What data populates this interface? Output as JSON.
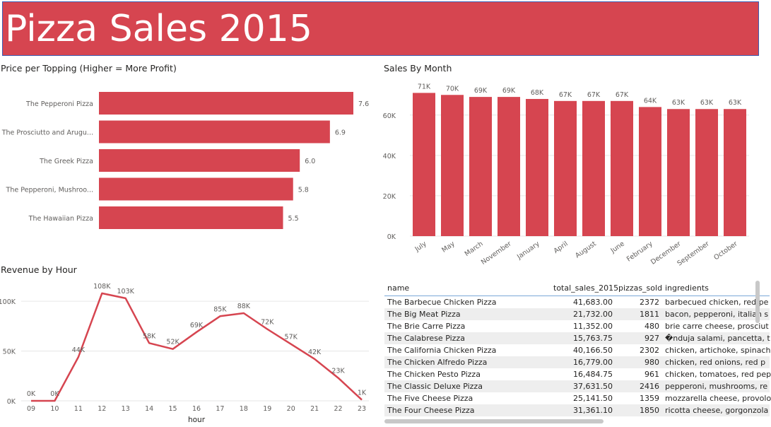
{
  "header": {
    "title": "Pizza Sales 2015",
    "color": "#d64550"
  },
  "colors": {
    "bar": "#d64550",
    "line": "#d64550",
    "grid": "#e6e6e6",
    "text": "#605e5c"
  },
  "charts": [
    {
      "id": "price_per_topping",
      "type": "bar",
      "orientation": "horizontal",
      "title": "Price per Topping (Higher = More Profit)",
      "categories": [
        "The Pepperoni Pizza",
        "The Prosciutto and Arugu...",
        "The Greek Pizza",
        "The Pepperoni, Mushroo...",
        "The Hawaiian Pizza"
      ],
      "values": [
        7.6,
        6.9,
        6.0,
        5.8,
        5.5
      ],
      "value_labels": [
        "7.6",
        "6.9",
        "6.0",
        "5.8",
        "5.5"
      ],
      "xlim": [
        0,
        7.6
      ]
    },
    {
      "id": "sales_by_month",
      "type": "bar",
      "orientation": "vertical",
      "title": "Sales By Month",
      "categories": [
        "July",
        "May",
        "March",
        "November",
        "January",
        "April",
        "August",
        "June",
        "February",
        "December",
        "September",
        "October"
      ],
      "values": [
        71000,
        70000,
        69000,
        69000,
        68000,
        67000,
        67000,
        67000,
        64000,
        63000,
        63000,
        63000
      ],
      "value_labels": [
        "71K",
        "70K",
        "69K",
        "69K",
        "68K",
        "67K",
        "67K",
        "67K",
        "64K",
        "63K",
        "63K",
        "63K"
      ],
      "ylim": [
        0,
        75000
      ],
      "yticks": [
        0,
        20000,
        40000,
        60000
      ],
      "ytick_labels": [
        "0K",
        "20K",
        "40K",
        "60K"
      ]
    },
    {
      "id": "revenue_by_hour",
      "type": "line",
      "title": "Revenue by Hour",
      "xlabel": "hour",
      "x": [
        "09",
        "10",
        "11",
        "12",
        "13",
        "14",
        "15",
        "16",
        "17",
        "18",
        "19",
        "20",
        "21",
        "22",
        "23"
      ],
      "values": [
        0,
        0,
        44000,
        108000,
        103000,
        58000,
        52000,
        69000,
        85000,
        88000,
        72000,
        57000,
        42000,
        23000,
        1000
      ],
      "value_labels": [
        "0K",
        "0K",
        "44K",
        "108K",
        "103K",
        "58K",
        "52K",
        "69K",
        "85K",
        "88K",
        "72K",
        "57K",
        "42K",
        "23K",
        "1K"
      ],
      "ylim": [
        0,
        115000
      ],
      "yticks": [
        0,
        50000,
        100000
      ],
      "ytick_labels": [
        "0K",
        "50K",
        "100K"
      ]
    }
  ],
  "chart_data": [
    {
      "type": "bar",
      "title": "Price per Topping (Higher = More Profit)",
      "categories": [
        "The Pepperoni Pizza",
        "The Prosciutto and Arugu...",
        "The Greek Pizza",
        "The Pepperoni, Mushroo...",
        "The Hawaiian Pizza"
      ],
      "values": [
        7.6,
        6.9,
        6.0,
        5.8,
        5.5
      ]
    },
    {
      "type": "bar",
      "title": "Sales By Month",
      "categories": [
        "July",
        "May",
        "March",
        "November",
        "January",
        "April",
        "August",
        "June",
        "February",
        "December",
        "September",
        "October"
      ],
      "values": [
        71000,
        70000,
        69000,
        69000,
        68000,
        67000,
        67000,
        67000,
        64000,
        63000,
        63000,
        63000
      ],
      "ylim": [
        0,
        75000
      ]
    },
    {
      "type": "line",
      "title": "Revenue by Hour",
      "xlabel": "hour",
      "x": [
        "09",
        "10",
        "11",
        "12",
        "13",
        "14",
        "15",
        "16",
        "17",
        "18",
        "19",
        "20",
        "21",
        "22",
        "23"
      ],
      "values": [
        0,
        0,
        44000,
        108000,
        103000,
        58000,
        52000,
        69000,
        85000,
        88000,
        72000,
        57000,
        42000,
        23000,
        1000
      ],
      "ylim": [
        0,
        115000
      ]
    },
    {
      "type": "table",
      "columns": [
        "name",
        "total_sales_2015",
        "pizzas_sold",
        "ingredients"
      ],
      "rows": [
        [
          "The Barbecue Chicken Pizza",
          "41,683.00",
          "2372",
          "barbecued chicken, red pe"
        ],
        [
          "The Big Meat Pizza",
          "21,732.00",
          "1811",
          "bacon, pepperoni, italian s"
        ],
        [
          "The Brie Carre Pizza",
          "11,352.00",
          "480",
          "brie carre cheese, prosciut"
        ],
        [
          "The Calabrese Pizza",
          "15,763.75",
          "927",
          "�nduja salami, pancetta, t"
        ],
        [
          "The California Chicken Pizza",
          "40,166.50",
          "2302",
          "chicken, artichoke, spinach"
        ],
        [
          "The Chicken Alfredo Pizza",
          "16,779.00",
          "980",
          "chicken, red onions, red p"
        ],
        [
          "The Chicken Pesto Pizza",
          "16,484.75",
          "961",
          "chicken, tomatoes, red pep"
        ],
        [
          "The Classic Deluxe Pizza",
          "37,631.50",
          "2416",
          "pepperoni, mushrooms, re"
        ],
        [
          "The Five Cheese Pizza",
          "25,141.50",
          "1359",
          "mozzarella cheese, provolo"
        ],
        [
          "The Four Cheese Pizza",
          "31,361.10",
          "1850",
          "ricotta cheese, gorgonzola"
        ]
      ]
    }
  ],
  "table": {
    "columns": [
      "name",
      "total_sales_2015",
      "pizzas_sold",
      "ingredients"
    ],
    "rows": [
      [
        "The Barbecue Chicken Pizza",
        "41,683.00",
        "2372",
        "barbecued chicken, red pe"
      ],
      [
        "The Big Meat Pizza",
        "21,732.00",
        "1811",
        "bacon, pepperoni, italian s"
      ],
      [
        "The Brie Carre Pizza",
        "11,352.00",
        "480",
        "brie carre cheese, prosciut"
      ],
      [
        "The Calabrese Pizza",
        "15,763.75",
        "927",
        "�nduja salami, pancetta, t"
      ],
      [
        "The California Chicken Pizza",
        "40,166.50",
        "2302",
        "chicken, artichoke, spinach"
      ],
      [
        "The Chicken Alfredo Pizza",
        "16,779.00",
        "980",
        "chicken, red onions, red p"
      ],
      [
        "The Chicken Pesto Pizza",
        "16,484.75",
        "961",
        "chicken, tomatoes, red pep"
      ],
      [
        "The Classic Deluxe Pizza",
        "37,631.50",
        "2416",
        "pepperoni, mushrooms, re"
      ],
      [
        "The Five Cheese Pizza",
        "25,141.50",
        "1359",
        "mozzarella cheese, provolo"
      ],
      [
        "The Four Cheese Pizza",
        "31,361.10",
        "1850",
        "ricotta cheese, gorgonzola"
      ]
    ]
  }
}
